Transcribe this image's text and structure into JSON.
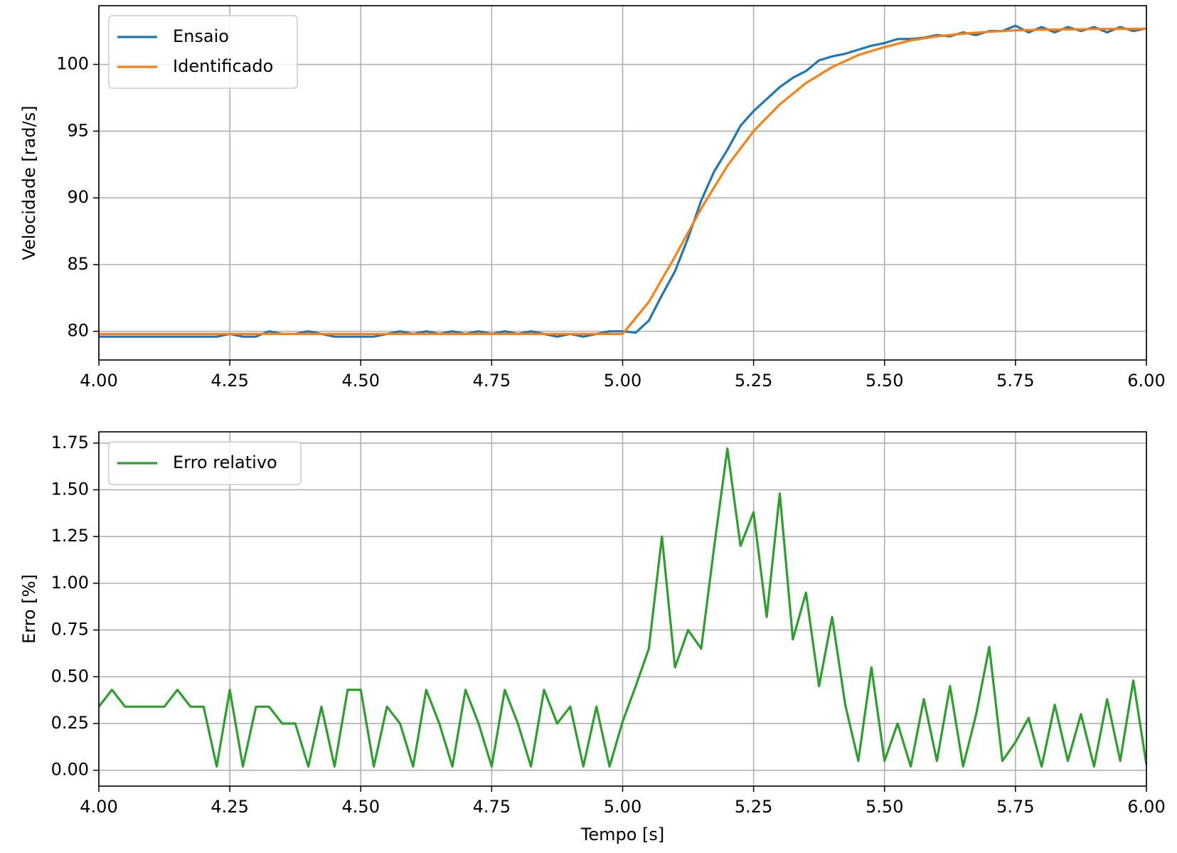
{
  "chart_data": [
    {
      "type": "line",
      "ylabel": "Velocidade [rad/s]",
      "xlim": [
        4,
        6
      ],
      "ylim": [
        77.85,
        104.4
      ],
      "xticks": [
        {
          "value": 4,
          "label": "4.00"
        },
        {
          "value": 4.25,
          "label": "4.25"
        },
        {
          "value": 4.5,
          "label": "4.50"
        },
        {
          "value": 4.75,
          "label": "4.75"
        },
        {
          "value": 5,
          "label": "5.00"
        },
        {
          "value": 5.25,
          "label": "5.25"
        },
        {
          "value": 5.5,
          "label": "5.50"
        },
        {
          "value": 5.75,
          "label": "5.75"
        },
        {
          "value": 6,
          "label": "6.00"
        }
      ],
      "yticks": [
        80,
        85,
        90,
        95,
        100
      ],
      "grid": true,
      "legend": "upper-left",
      "series": [
        {
          "name": "Ensaio",
          "color": "#1f77b4",
          "x": [
            4,
            4.025,
            4.05,
            4.075,
            4.1,
            4.125,
            4.15,
            4.175,
            4.2,
            4.225,
            4.25,
            4.275,
            4.3,
            4.325,
            4.35,
            4.375,
            4.4,
            4.425,
            4.45,
            4.475,
            4.5,
            4.525,
            4.55,
            4.575,
            4.6,
            4.625,
            4.65,
            4.675,
            4.7,
            4.725,
            4.75,
            4.775,
            4.8,
            4.825,
            4.85,
            4.875,
            4.9,
            4.925,
            4.95,
            4.975,
            5,
            5.025,
            5.05,
            5.075,
            5.1,
            5.125,
            5.15,
            5.175,
            5.2,
            5.225,
            5.25,
            5.275,
            5.3,
            5.325,
            5.35,
            5.375,
            5.4,
            5.425,
            5.45,
            5.475,
            5.5,
            5.525,
            5.55,
            5.575,
            5.6,
            5.625,
            5.65,
            5.675,
            5.7,
            5.725,
            5.75,
            5.775,
            5.8,
            5.825,
            5.85,
            5.875,
            5.9,
            5.925,
            5.95,
            5.975,
            6
          ],
          "values": [
            79.6,
            79.6,
            79.6,
            79.6,
            79.6,
            79.6,
            79.6,
            79.6,
            79.6,
            79.6,
            79.8,
            79.6,
            79.6,
            80.0,
            79.8,
            79.8,
            80.0,
            79.8,
            79.6,
            79.6,
            79.6,
            79.6,
            79.8,
            80.0,
            79.8,
            80.0,
            79.8,
            80.0,
            79.8,
            80.0,
            79.8,
            80.0,
            79.8,
            80.0,
            79.8,
            79.6,
            79.8,
            79.6,
            79.8,
            80.0,
            80.0,
            79.9,
            80.8,
            82.7,
            84.5,
            87.0,
            89.8,
            92.0,
            93.6,
            95.4,
            96.5,
            97.4,
            98.3,
            99.0,
            99.5,
            100.3,
            100.6,
            100.8,
            101.1,
            101.4,
            101.6,
            101.9,
            101.9,
            102.0,
            102.2,
            102.1,
            102.4,
            102.2,
            102.5,
            102.5,
            102.9,
            102.4,
            102.8,
            102.4,
            102.8,
            102.5,
            102.8,
            102.4,
            102.8,
            102.5,
            102.7
          ]
        },
        {
          "name": "Identificado",
          "color": "#ff7f0e",
          "x": [
            4,
            4.05,
            4.1,
            4.15,
            4.2,
            4.25,
            4.3,
            4.35,
            4.4,
            4.45,
            4.5,
            4.55,
            4.6,
            4.65,
            4.7,
            4.75,
            4.8,
            4.85,
            4.9,
            4.95,
            5,
            5.05,
            5.1,
            5.15,
            5.2,
            5.25,
            5.3,
            5.35,
            5.4,
            5.45,
            5.5,
            5.55,
            5.6,
            5.65,
            5.7,
            5.75,
            5.8,
            5.85,
            5.9,
            5.95,
            6
          ],
          "values": [
            79.8,
            79.8,
            79.8,
            79.8,
            79.8,
            79.8,
            79.8,
            79.8,
            79.8,
            79.8,
            79.8,
            79.8,
            79.8,
            79.8,
            79.8,
            79.8,
            79.8,
            79.8,
            79.8,
            79.8,
            79.8,
            82.2,
            85.6,
            89.2,
            92.4,
            95.0,
            97.0,
            98.6,
            99.8,
            100.7,
            101.3,
            101.8,
            102.1,
            102.3,
            102.45,
            102.55,
            102.6,
            102.62,
            102.65,
            102.66,
            102.67
          ]
        }
      ]
    },
    {
      "type": "line",
      "xlabel": "Tempo [s]",
      "ylabel": "Erro [%]",
      "xlim": [
        4,
        6
      ],
      "ylim": [
        -0.085,
        1.81
      ],
      "xticks": [
        {
          "value": 4,
          "label": "4.00"
        },
        {
          "value": 4.25,
          "label": "4.25"
        },
        {
          "value": 4.5,
          "label": "4.50"
        },
        {
          "value": 4.75,
          "label": "4.75"
        },
        {
          "value": 5,
          "label": "5.00"
        },
        {
          "value": 5.25,
          "label": "5.25"
        },
        {
          "value": 5.5,
          "label": "5.50"
        },
        {
          "value": 5.75,
          "label": "5.75"
        },
        {
          "value": 6,
          "label": "6.00"
        }
      ],
      "yticks": [
        {
          "value": 0,
          "label": "0.00"
        },
        {
          "value": 0.25,
          "label": "0.25"
        },
        {
          "value": 0.5,
          "label": "0.50"
        },
        {
          "value": 0.75,
          "label": "0.75"
        },
        {
          "value": 1,
          "label": "1.00"
        },
        {
          "value": 1.25,
          "label": "1.25"
        },
        {
          "value": 1.5,
          "label": "1.50"
        },
        {
          "value": 1.75,
          "label": "1.75"
        }
      ],
      "grid": true,
      "legend": "upper-left",
      "series": [
        {
          "name": "Erro relativo",
          "color": "#2ca02c",
          "x": [
            4,
            4.025,
            4.05,
            4.075,
            4.1,
            4.125,
            4.15,
            4.175,
            4.2,
            4.225,
            4.25,
            4.275,
            4.3,
            4.325,
            4.35,
            4.375,
            4.4,
            4.425,
            4.45,
            4.475,
            4.5,
            4.525,
            4.55,
            4.575,
            4.6,
            4.625,
            4.65,
            4.675,
            4.7,
            4.725,
            4.75,
            4.775,
            4.8,
            4.825,
            4.85,
            4.875,
            4.9,
            4.925,
            4.95,
            4.975,
            5,
            5.025,
            5.05,
            5.075,
            5.1,
            5.125,
            5.15,
            5.175,
            5.2,
            5.225,
            5.25,
            5.275,
            5.3,
            5.325,
            5.35,
            5.375,
            5.4,
            5.425,
            5.45,
            5.475,
            5.5,
            5.525,
            5.55,
            5.575,
            5.6,
            5.625,
            5.65,
            5.675,
            5.7,
            5.725,
            5.75,
            5.775,
            5.8,
            5.825,
            5.85,
            5.875,
            5.9,
            5.925,
            5.95,
            5.975,
            6
          ],
          "values": [
            0.34,
            0.43,
            0.34,
            0.34,
            0.34,
            0.34,
            0.43,
            0.34,
            0.34,
            0.02,
            0.43,
            0.02,
            0.34,
            0.34,
            0.25,
            0.25,
            0.02,
            0.34,
            0.02,
            0.43,
            0.43,
            0.02,
            0.34,
            0.25,
            0.02,
            0.43,
            0.25,
            0.02,
            0.43,
            0.25,
            0.02,
            0.43,
            0.25,
            0.02,
            0.43,
            0.25,
            0.34,
            0.02,
            0.34,
            0.02,
            0.26,
            0.45,
            0.65,
            1.25,
            0.55,
            0.75,
            0.65,
            1.2,
            1.72,
            1.2,
            1.38,
            0.82,
            1.48,
            0.7,
            0.95,
            0.45,
            0.82,
            0.35,
            0.05,
            0.55,
            0.05,
            0.25,
            0.02,
            0.38,
            0.05,
            0.45,
            0.02,
            0.3,
            0.66,
            0.05,
            0.15,
            0.28,
            0.02,
            0.35,
            0.05,
            0.3,
            0.02,
            0.38,
            0.05,
            0.48,
            0.03
          ]
        }
      ]
    }
  ]
}
